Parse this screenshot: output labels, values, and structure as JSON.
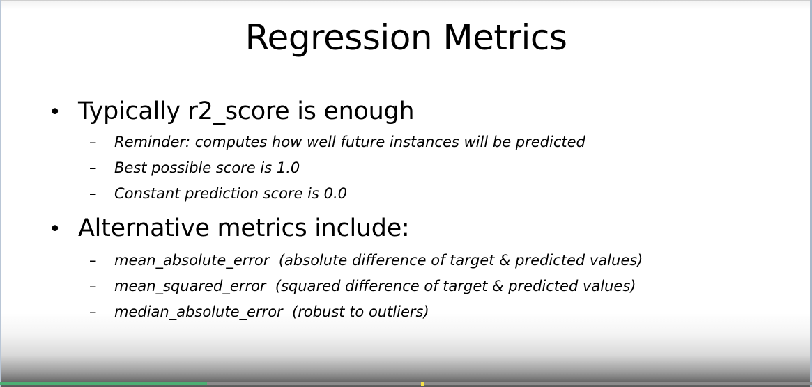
{
  "slide": {
    "title": "Regression Metrics",
    "bullets": [
      {
        "text": "Typically r2_score is enough",
        "subitems": [
          "Reminder: computes how well future instances will be predicted",
          "Best possible score is 1.0",
          "Constant prediction score is 0.0"
        ]
      },
      {
        "text": "Alternative metrics include:",
        "subitems": [
          "mean_absolute_error  (absolute difference of target & predicted values)",
          "mean_squared_error  (squared difference of target & predicted values)",
          "median_absolute_error  (robust to outliers)"
        ]
      }
    ],
    "bullet_glyph": "•",
    "dash_glyph": "–"
  },
  "player": {
    "progress_fraction": 0.255,
    "progress_color": "#4caf73",
    "marker_color": "#f5e14a"
  }
}
